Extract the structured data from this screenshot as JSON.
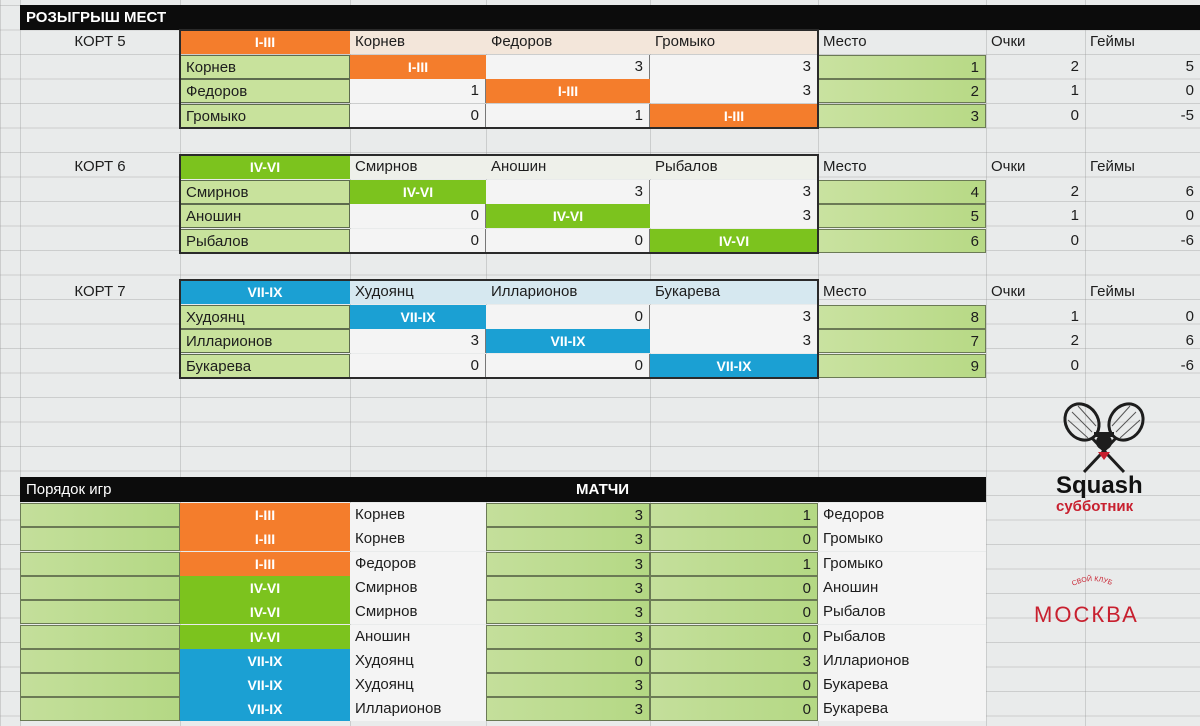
{
  "header": {
    "title": "РОЗЫГРЫШ МЕСТ"
  },
  "courts": [
    {
      "label": "КОРТ 5",
      "tag": "I-III",
      "color": "orange",
      "players": [
        "Корнев",
        "Федоров",
        "Громыко"
      ],
      "col_place": "Место",
      "col_points": "Очки",
      "col_games": "Геймы",
      "rows": [
        {
          "name": "Корнев",
          "cells": [
            "I-III",
            "3",
            "3"
          ],
          "place": "1",
          "points": "2",
          "games": "5"
        },
        {
          "name": "Федоров",
          "cells": [
            "1",
            "I-III",
            "3"
          ],
          "place": "2",
          "points": "1",
          "games": "0"
        },
        {
          "name": "Громыко",
          "cells": [
            "0",
            "1",
            "I-III"
          ],
          "place": "3",
          "points": "0",
          "games": "-5"
        }
      ]
    },
    {
      "label": "КОРТ 6",
      "tag": "IV-VI",
      "color": "green",
      "players": [
        "Смирнов",
        "Аношин",
        "Рыбалов"
      ],
      "col_place": "Место",
      "col_points": "Очки",
      "col_games": "Геймы",
      "rows": [
        {
          "name": "Смирнов",
          "cells": [
            "IV-VI",
            "3",
            "3"
          ],
          "place": "4",
          "points": "2",
          "games": "6"
        },
        {
          "name": "Аношин",
          "cells": [
            "0",
            "IV-VI",
            "3"
          ],
          "place": "5",
          "points": "1",
          "games": "0"
        },
        {
          "name": "Рыбалов",
          "cells": [
            "0",
            "0",
            "IV-VI"
          ],
          "place": "6",
          "points": "0",
          "games": "-6"
        }
      ]
    },
    {
      "label": "КОРТ 7",
      "tag": "VII-IX",
      "color": "blue",
      "players": [
        "Худоянц",
        "Илларионов",
        "Букарева"
      ],
      "col_place": "Место",
      "col_points": "Очки",
      "col_games": "Геймы",
      "rows": [
        {
          "name": "Худоянц",
          "cells": [
            "VII-IX",
            "0",
            "3"
          ],
          "place": "8",
          "points": "1",
          "games": "0"
        },
        {
          "name": "Илларионов",
          "cells": [
            "3",
            "VII-IX",
            "3"
          ],
          "place": "7",
          "points": "2",
          "games": "6"
        },
        {
          "name": "Букарева",
          "cells": [
            "0",
            "0",
            "VII-IX"
          ],
          "place": "9",
          "points": "0",
          "games": "-6"
        }
      ]
    }
  ],
  "order": {
    "title": "Порядок игр",
    "matches_title": "МАТЧИ",
    "rows": [
      {
        "tag": "I-III",
        "color": "orange",
        "p1": "Корнев",
        "s1": "3",
        "s2": "1",
        "p2": "Федоров"
      },
      {
        "tag": "I-III",
        "color": "orange",
        "p1": "Корнев",
        "s1": "3",
        "s2": "0",
        "p2": "Громыко"
      },
      {
        "tag": "I-III",
        "color": "orange",
        "p1": "Федоров",
        "s1": "3",
        "s2": "1",
        "p2": "Громыко"
      },
      {
        "tag": "IV-VI",
        "color": "green",
        "p1": "Смирнов",
        "s1": "3",
        "s2": "0",
        "p2": "Аношин"
      },
      {
        "tag": "IV-VI",
        "color": "green",
        "p1": "Смирнов",
        "s1": "3",
        "s2": "0",
        "p2": "Рыбалов"
      },
      {
        "tag": "IV-VI",
        "color": "green",
        "p1": "Аношин",
        "s1": "3",
        "s2": "0",
        "p2": "Рыбалов"
      },
      {
        "tag": "VII-IX",
        "color": "blue",
        "p1": "Худоянц",
        "s1": "0",
        "s2": "3",
        "p2": "Илларионов"
      },
      {
        "tag": "VII-IX",
        "color": "blue",
        "p1": "Худоянц",
        "s1": "3",
        "s2": "0",
        "p2": "Букарева"
      },
      {
        "tag": "VII-IX",
        "color": "blue",
        "p1": "Илларионов",
        "s1": "3",
        "s2": "0",
        "p2": "Букарева"
      }
    ]
  },
  "logos": {
    "brand_name": "Squash",
    "brand_sub": "субботник",
    "club_arc": "СВОЙ КЛУБ",
    "club_city": "МОСКВА"
  },
  "colors": {
    "orange": "#f47d2c",
    "green": "#7cc31e",
    "blue": "#1ba0d3",
    "red": "#c8202f"
  }
}
